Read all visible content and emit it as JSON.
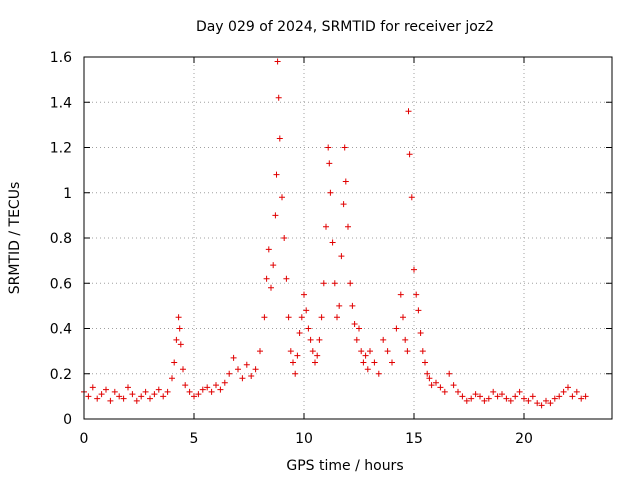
{
  "chart_data": {
    "type": "scatter",
    "title": "Day 029 of 2024, SRMTID for receiver joz2",
    "xlabel": "GPS time / hours",
    "ylabel": "SRMTID / TECUs",
    "xlim": [
      0,
      24
    ],
    "ylim": [
      0,
      1.6
    ],
    "x_ticks": [
      0,
      5,
      10,
      15,
      20
    ],
    "x_tick_labels": [
      "0",
      "5",
      "10",
      "15",
      "20"
    ],
    "y_ticks": [
      0,
      0.2,
      0.4,
      0.6,
      0.8,
      1,
      1.2,
      1.4,
      1.6
    ],
    "y_tick_labels": [
      "0",
      "0.2",
      "0.4",
      "0.6",
      "0.8",
      "1",
      "1.2",
      "1.4",
      "1.6"
    ],
    "grid": true,
    "marker": "+",
    "series": [
      {
        "name": "SRMTID",
        "color": "#e00000",
        "x": [
          0.0,
          0.2,
          0.4,
          0.6,
          0.8,
          1.0,
          1.2,
          1.4,
          1.6,
          1.8,
          2.0,
          2.2,
          2.4,
          2.6,
          2.8,
          3.0,
          3.2,
          3.4,
          3.6,
          3.8,
          4.0,
          4.1,
          4.2,
          4.3,
          4.35,
          4.4,
          4.5,
          4.6,
          4.8,
          5.0,
          5.2,
          5.4,
          5.6,
          5.8,
          6.0,
          6.2,
          6.4,
          6.6,
          6.8,
          7.0,
          7.2,
          7.4,
          7.6,
          7.8,
          8.0,
          8.2,
          8.3,
          8.4,
          8.5,
          8.6,
          8.7,
          8.75,
          8.8,
          8.85,
          8.9,
          9.0,
          9.1,
          9.2,
          9.3,
          9.4,
          9.5,
          9.6,
          9.7,
          9.8,
          9.9,
          10.0,
          10.1,
          10.2,
          10.3,
          10.4,
          10.5,
          10.6,
          10.7,
          10.8,
          10.9,
          11.0,
          11.1,
          11.15,
          11.2,
          11.3,
          11.4,
          11.5,
          11.6,
          11.7,
          11.8,
          11.85,
          11.9,
          12.0,
          12.1,
          12.2,
          12.3,
          12.4,
          12.5,
          12.6,
          12.7,
          12.8,
          12.9,
          13.0,
          13.2,
          13.4,
          13.6,
          13.8,
          14.0,
          14.2,
          14.4,
          14.5,
          14.6,
          14.7,
          14.75,
          14.8,
          14.9,
          15.0,
          15.1,
          15.2,
          15.3,
          15.4,
          15.5,
          15.6,
          15.7,
          15.8,
          16.0,
          16.2,
          16.4,
          16.6,
          16.8,
          17.0,
          17.2,
          17.4,
          17.6,
          17.8,
          18.0,
          18.2,
          18.4,
          18.6,
          18.8,
          19.0,
          19.2,
          19.4,
          19.6,
          19.8,
          20.0,
          20.2,
          20.4,
          20.6,
          20.8,
          21.0,
          21.2,
          21.4,
          21.6,
          21.8,
          22.0,
          22.2,
          22.4,
          22.6,
          22.8
        ],
        "y": [
          0.12,
          0.1,
          0.14,
          0.09,
          0.11,
          0.13,
          0.08,
          0.12,
          0.1,
          0.09,
          0.14,
          0.11,
          0.08,
          0.1,
          0.12,
          0.09,
          0.11,
          0.13,
          0.1,
          0.12,
          0.18,
          0.25,
          0.35,
          0.45,
          0.4,
          0.33,
          0.22,
          0.15,
          0.12,
          0.1,
          0.11,
          0.13,
          0.14,
          0.12,
          0.15,
          0.13,
          0.16,
          0.2,
          0.27,
          0.22,
          0.18,
          0.24,
          0.19,
          0.22,
          0.3,
          0.45,
          0.62,
          0.75,
          0.58,
          0.68,
          0.9,
          1.08,
          1.58,
          1.42,
          1.24,
          0.98,
          0.8,
          0.62,
          0.45,
          0.3,
          0.25,
          0.2,
          0.28,
          0.38,
          0.45,
          0.55,
          0.48,
          0.4,
          0.35,
          0.3,
          0.25,
          0.28,
          0.35,
          0.45,
          0.6,
          0.85,
          1.2,
          1.13,
          1.0,
          0.78,
          0.6,
          0.45,
          0.5,
          0.72,
          0.95,
          1.2,
          1.05,
          0.85,
          0.6,
          0.5,
          0.42,
          0.35,
          0.4,
          0.3,
          0.25,
          0.28,
          0.22,
          0.3,
          0.25,
          0.2,
          0.35,
          0.3,
          0.25,
          0.4,
          0.55,
          0.45,
          0.35,
          0.3,
          1.36,
          1.17,
          0.98,
          0.66,
          0.55,
          0.48,
          0.38,
          0.3,
          0.25,
          0.2,
          0.18,
          0.15,
          0.16,
          0.14,
          0.12,
          0.2,
          0.15,
          0.12,
          0.1,
          0.08,
          0.09,
          0.11,
          0.1,
          0.08,
          0.09,
          0.12,
          0.1,
          0.11,
          0.09,
          0.08,
          0.1,
          0.12,
          0.09,
          0.08,
          0.1,
          0.07,
          0.06,
          0.08,
          0.07,
          0.09,
          0.1,
          0.12,
          0.14,
          0.1,
          0.12,
          0.09,
          0.1
        ]
      }
    ]
  }
}
